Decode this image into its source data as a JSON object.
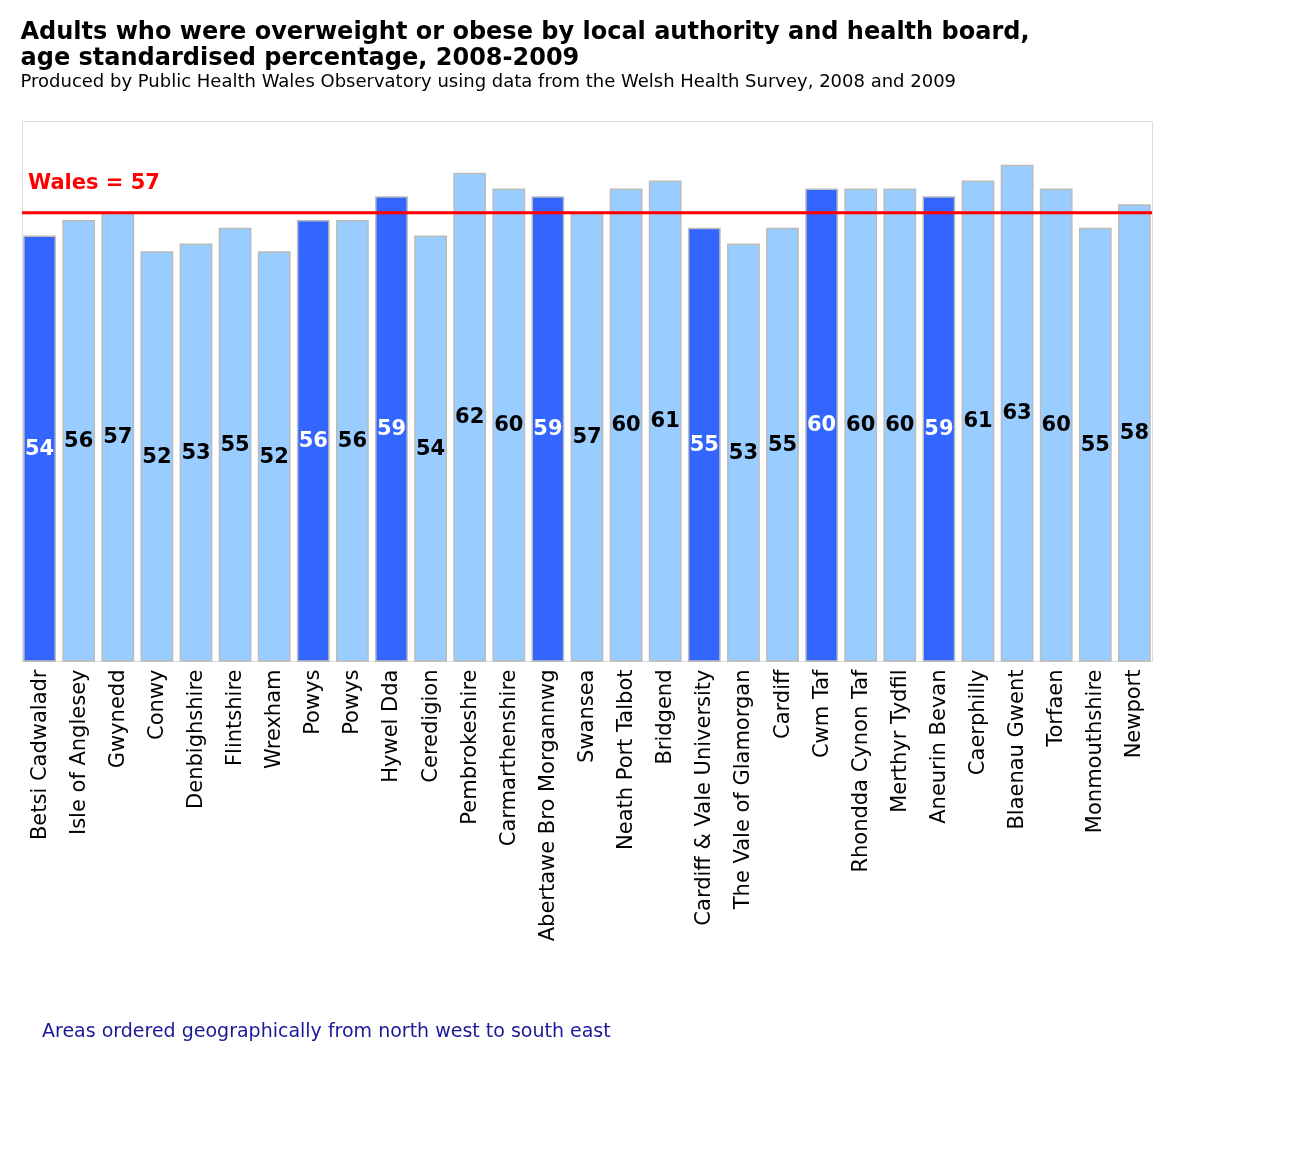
{
  "chart_data": {
    "type": "bar",
    "title": [
      "Adults who were overweight or obese by local authority and health board,",
      "age standardised percentage, 2008-2009"
    ],
    "subtitle": "Produced by Public Health Wales Observatory using data from the Welsh Health Survey, 2008 and 2009",
    "categories": [
      "Betsi Cadwaladr",
      "Isle of Anglesey",
      "Gwynedd",
      "Conwy",
      "Denbighshire",
      "Flintshire",
      "Wrexham",
      "Powys",
      "Powys",
      "Hywel Dda",
      "Ceredigion",
      "Pembrokeshire",
      "Carmarthenshire",
      "Abertawe Bro Morgannwg",
      "Swansea",
      "Neath Port Talbot",
      "Bridgend",
      "Cardiff & Vale University",
      "The Vale of Glamorgan",
      "Cardiff",
      "Cwm Taf",
      "Rhondda Cynon Taf",
      "Merthyr Tydfil",
      "Aneurin Bevan",
      "Caerphilly",
      "Blaenau Gwent",
      "Torfaen",
      "Monmouthshire",
      "Newport"
    ],
    "values": [
      54,
      56,
      57,
      52,
      53,
      55,
      52,
      56,
      56,
      59,
      54,
      62,
      60,
      59,
      57,
      60,
      61,
      55,
      53,
      55,
      60,
      60,
      60,
      59,
      61,
      63,
      60,
      55,
      58
    ],
    "colors": [
      "#3366ff",
      "#99ccff",
      "#99ccff",
      "#99ccff",
      "#99ccff",
      "#99ccff",
      "#99ccff",
      "#3366ff",
      "#99ccff",
      "#3366ff",
      "#99ccff",
      "#99ccff",
      "#99ccff",
      "#3366ff",
      "#99ccff",
      "#99ccff",
      "#99ccff",
      "#3366ff",
      "#99ccff",
      "#99ccff",
      "#3366ff",
      "#99ccff",
      "#99ccff",
      "#3366ff",
      "#99ccff",
      "#99ccff",
      "#99ccff",
      "#99ccff",
      "#99ccff"
    ],
    "data_labels": true,
    "grid": false,
    "ref_lines": [
      {
        "axis": "y",
        "value": 57,
        "label": "Wales = 57",
        "color": "#ff0000"
      }
    ],
    "annotations": [
      "Areas ordered geographically from north west to south east"
    ]
  }
}
